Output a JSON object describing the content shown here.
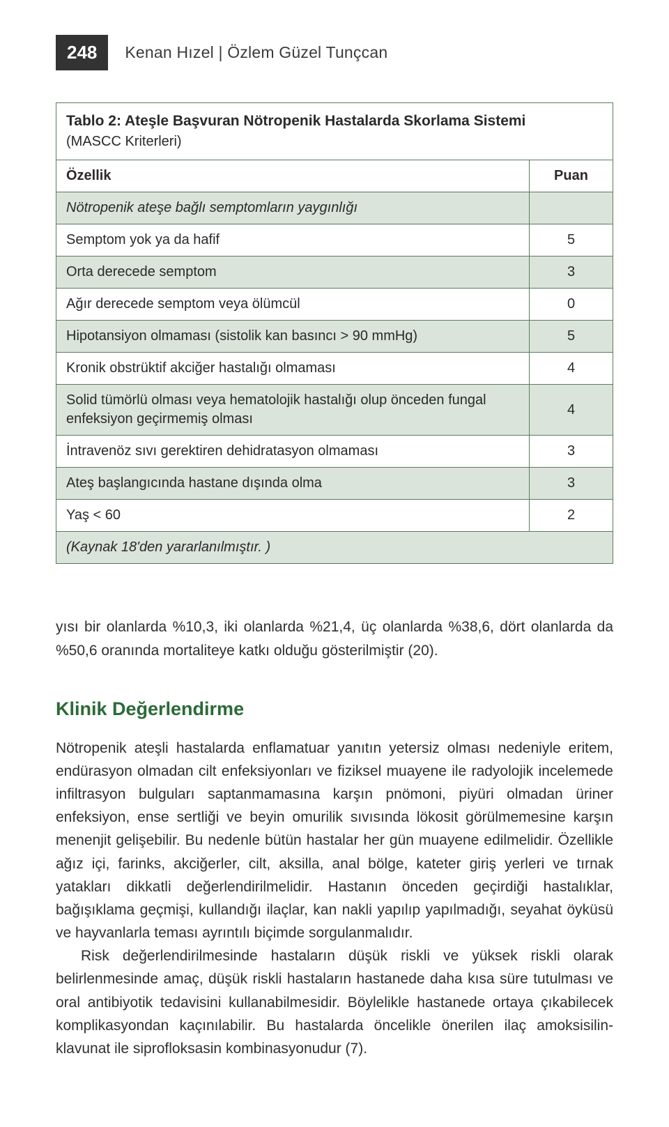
{
  "page_number": "248",
  "authors": "Kenan Hızel | Özlem Güzel Tunçcan",
  "table": {
    "title": "Tablo 2: Ateşle Başvuran Nötropenik Hastalarda Skorlama Sistemi",
    "subtitle": "(MASCC Kriterleri)",
    "col1": "Özellik",
    "col2": "Puan",
    "shaded_colors": {
      "bg": "#dbe4da",
      "border": "#5a7a5e"
    },
    "rows": [
      {
        "label": "Nötropenik ateşe bağlı semptomların yaygınlığı",
        "value": "",
        "shaded": true,
        "italicLabel": true
      },
      {
        "label": "Semptom yok ya da hafif",
        "value": "5",
        "shaded": false
      },
      {
        "label": "Orta derecede semptom",
        "value": "3",
        "shaded": true
      },
      {
        "label": "Ağır derecede semptom veya ölümcül",
        "value": "0",
        "shaded": false
      },
      {
        "label": "Hipotansiyon olmaması (sistolik kan basıncı > 90 mmHg)",
        "value": "5",
        "shaded": true
      },
      {
        "label": "Kronik obstrüktif akciğer hastalığı olmaması",
        "value": "4",
        "shaded": false
      },
      {
        "label": "Solid tümörlü olması veya hematolojik hastalığı olup önceden fungal enfeksiyon geçirmemiş olması",
        "value": "4",
        "shaded": true
      },
      {
        "label": "İntravenöz sıvı gerektiren dehidratasyon olmaması",
        "value": "3",
        "shaded": false
      },
      {
        "label": "Ateş başlangıcında hastane dışında olma",
        "value": "3",
        "shaded": true
      },
      {
        "label": "Yaş < 60",
        "value": "2",
        "shaded": false
      }
    ],
    "source": "(Kaynak 18'den yararlanılmıştır. )"
  },
  "paragraph_lead": "yısı bir olanlarda %10,3, iki olanlarda %21,4, üç olanlarda %38,6, dört olanlarda da %50,6 oranında mortaliteye katkı olduğu gösterilmiştir (20).",
  "section_heading": "Klinik Değerlendirme",
  "section_p1": "Nötropenik ateşli hastalarda enflamatuar yanıtın yetersiz olması nedeniyle eritem, endürasyon olmadan cilt enfeksiyonları ve fiziksel muayene ile radyolojik incelemede infiltrasyon bulguları saptanmamasına karşın pnömoni, piyüri olmadan üriner enfeksiyon, ense sertliği ve beyin omurilik sıvısında lökosit görülmemesine karşın menenjit gelişebilir. Bu nedenle bütün hastalar her gün muayene edilmelidir. Özellikle ağız içi, farinks, akciğerler, cilt, aksilla, anal bölge, kateter giriş yerleri ve tırnak yatakları dikkatli değerlendirilmelidir. Hastanın önceden geçirdiği hastalıklar, bağışıklama geçmişi, kullandığı ilaçlar, kan nakli yapılıp yapılmadığı, seyahat öyküsü ve hayvanlarla teması ayrıntılı biçimde sorgulanmalıdır.",
  "section_p2": "Risk değerlendirilmesinde hastaların düşük riskli ve yüksek riskli olarak belirlenmesinde amaç, düşük riskli hastaların hastanede daha kısa süre tutulması ve oral antibiyotik tedavisini kullanabilmesidir. Böylelikle hastanede ortaya çıkabilecek komplikasyondan kaçınılabilir. Bu hastalarda öncelikle önerilen ilaç amoksisilin-klavunat ile siprofloksasin kombinasyonudur (7)."
}
